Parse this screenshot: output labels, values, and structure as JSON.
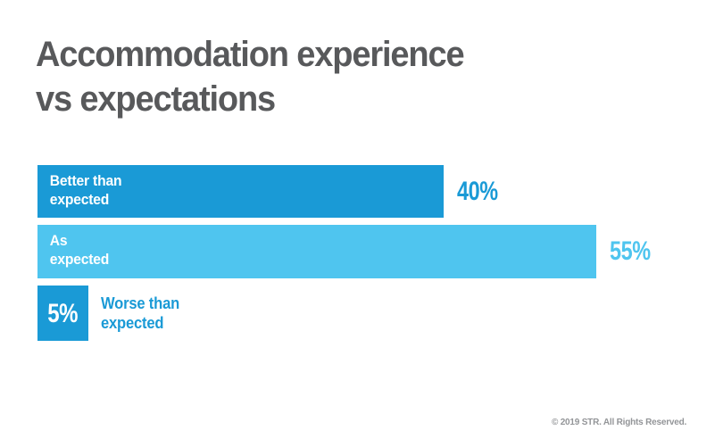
{
  "title": "Accommodation experience\nvs expectations",
  "footer": "© 2019 STR. All Rights Reserved.",
  "colors": {
    "background": "#FFFFFF",
    "title_text": "#58595B",
    "bar_dark_blue": "#1A9AD6",
    "bar_light_blue": "#4FC5EF",
    "bar_inner_text": "#FFFFFF",
    "footer_text": "#939598"
  },
  "chart_data": {
    "type": "bar",
    "orientation": "horizontal",
    "title": "Accommodation experience vs expectations",
    "xlabel": "",
    "ylabel": "",
    "unit": "%",
    "xlim": [
      0,
      60
    ],
    "grid": false,
    "legend": false,
    "categories": [
      "Better than expected",
      "As expected",
      "Worse than expected"
    ],
    "values": [
      40,
      55,
      5
    ],
    "bars": [
      {
        "label": "Better than\nexpected",
        "value": 40,
        "value_label": "40%",
        "bar_color": "#1A9AD6",
        "value_color": "#1A9AD6",
        "label_position": "inside-bar",
        "value_position": "right-of-bar"
      },
      {
        "label": "As\nexpected",
        "value": 55,
        "value_label": "55%",
        "bar_color": "#4FC5EF",
        "value_color": "#4FC5EF",
        "label_position": "inside-bar",
        "value_position": "right-of-bar"
      },
      {
        "label": "Worse than\nexpected",
        "value": 5,
        "value_label": "5%",
        "bar_color": "#1A9AD6",
        "value_color": "#FFFFFF",
        "label_position": "right-of-bar",
        "value_position": "inside-bar"
      }
    ]
  }
}
